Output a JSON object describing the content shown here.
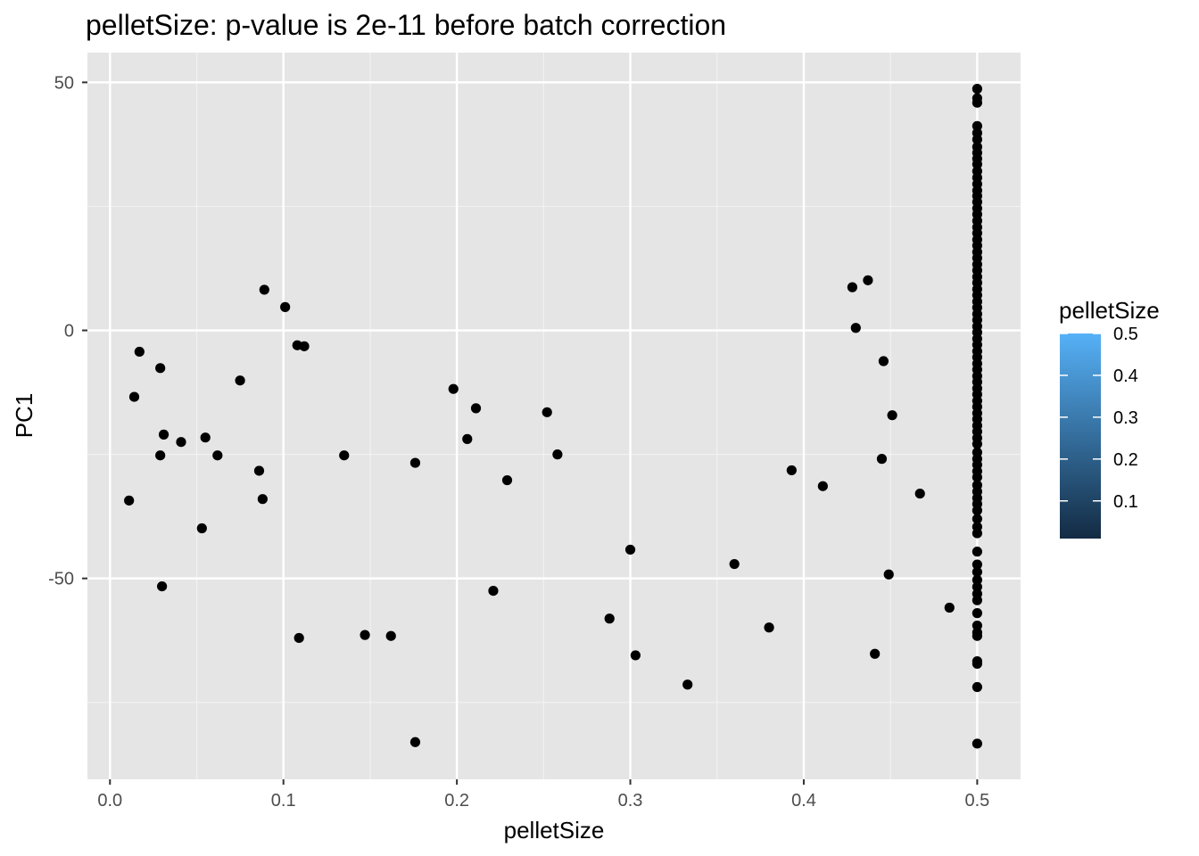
{
  "chart_data": {
    "type": "scatter",
    "title": "pelletSize: p-value is 2e-11 before batch correction",
    "xlabel": "pelletSize",
    "ylabel": "PC1",
    "xlim": [
      -0.013,
      0.525
    ],
    "ylim": [
      -90.5,
      56
    ],
    "x_ticks": [
      0.0,
      0.1,
      0.2,
      0.3,
      0.4,
      0.5
    ],
    "x_tick_labels": [
      "0.0",
      "0.1",
      "0.2",
      "0.3",
      "0.4",
      "0.5"
    ],
    "y_ticks": [
      50,
      0,
      -50
    ],
    "y_tick_labels": [
      "50",
      "0",
      "-50"
    ],
    "grid": true,
    "panel_background": "#e5e5e5",
    "point_color": "#000000",
    "legend": {
      "title": "pelletSize",
      "position": "right",
      "type": "colorbar",
      "low_color": "#132b43",
      "high_color": "#56b1f7",
      "range": [
        0.01,
        0.5
      ],
      "breaks": [
        0.5,
        0.4,
        0.3,
        0.2,
        0.1
      ],
      "break_labels": [
        "0.5",
        "0.4",
        "0.3",
        "0.2",
        "0.1"
      ]
    },
    "points": [
      [
        0.011,
        -34.3
      ],
      [
        0.014,
        -13.4
      ],
      [
        0.017,
        -4.3
      ],
      [
        0.029,
        -7.6
      ],
      [
        0.029,
        -25.2
      ],
      [
        0.03,
        -51.6
      ],
      [
        0.031,
        -21.0
      ],
      [
        0.041,
        -22.5
      ],
      [
        0.053,
        -39.9
      ],
      [
        0.055,
        -21.6
      ],
      [
        0.062,
        -25.2
      ],
      [
        0.075,
        -10.1
      ],
      [
        0.086,
        -28.3
      ],
      [
        0.088,
        -34.0
      ],
      [
        0.089,
        8.2
      ],
      [
        0.101,
        4.7
      ],
      [
        0.108,
        -3.0
      ],
      [
        0.109,
        -62.0
      ],
      [
        0.112,
        -3.2
      ],
      [
        0.135,
        -25.2
      ],
      [
        0.147,
        -61.4
      ],
      [
        0.162,
        -61.6
      ],
      [
        0.176,
        -26.7
      ],
      [
        0.176,
        -83.0
      ],
      [
        0.198,
        -11.8
      ],
      [
        0.206,
        -21.9
      ],
      [
        0.211,
        -15.7
      ],
      [
        0.221,
        -52.5
      ],
      [
        0.229,
        -30.2
      ],
      [
        0.252,
        -16.5
      ],
      [
        0.258,
        -25.0
      ],
      [
        0.288,
        -58.1
      ],
      [
        0.3,
        -44.2
      ],
      [
        0.303,
        -65.5
      ],
      [
        0.333,
        -71.4
      ],
      [
        0.36,
        -47.1
      ],
      [
        0.38,
        -59.9
      ],
      [
        0.393,
        -28.2
      ],
      [
        0.411,
        -31.4
      ],
      [
        0.428,
        8.7
      ],
      [
        0.43,
        0.5
      ],
      [
        0.437,
        10.1
      ],
      [
        0.441,
        -65.2
      ],
      [
        0.445,
        -25.9
      ],
      [
        0.446,
        -6.2
      ],
      [
        0.449,
        -49.2
      ],
      [
        0.451,
        -17.1
      ],
      [
        0.467,
        -32.9
      ],
      [
        0.484,
        -55.9
      ],
      [
        0.5,
        48.7
      ],
      [
        0.5,
        46.8
      ],
      [
        0.5,
        45.9
      ],
      [
        0.5,
        41.2
      ],
      [
        0.5,
        39.8
      ],
      [
        0.5,
        38.5
      ],
      [
        0.5,
        37.0
      ],
      [
        0.5,
        35.8
      ],
      [
        0.5,
        34.6
      ],
      [
        0.5,
        33.5
      ],
      [
        0.5,
        32.1
      ],
      [
        0.5,
        30.8
      ],
      [
        0.5,
        29.5
      ],
      [
        0.5,
        28.2
      ],
      [
        0.5,
        27.1
      ],
      [
        0.5,
        25.9
      ],
      [
        0.5,
        24.6
      ],
      [
        0.5,
        23.4
      ],
      [
        0.5,
        22.1
      ],
      [
        0.5,
        20.8
      ],
      [
        0.5,
        19.6
      ],
      [
        0.5,
        18.3
      ],
      [
        0.5,
        17.1
      ],
      [
        0.5,
        15.8
      ],
      [
        0.5,
        14.6
      ],
      [
        0.5,
        13.3
      ],
      [
        0.5,
        12.1
      ],
      [
        0.5,
        10.8
      ],
      [
        0.5,
        9.6
      ],
      [
        0.5,
        8.3
      ],
      [
        0.5,
        7.1
      ],
      [
        0.5,
        5.8
      ],
      [
        0.5,
        4.6
      ],
      [
        0.5,
        3.3
      ],
      [
        0.5,
        2.1
      ],
      [
        0.5,
        0.8
      ],
      [
        0.5,
        -0.4
      ],
      [
        0.5,
        -1.7
      ],
      [
        0.5,
        -2.9
      ],
      [
        0.5,
        -4.2
      ],
      [
        0.5,
        -5.4
      ],
      [
        0.5,
        -6.7
      ],
      [
        0.5,
        -7.9
      ],
      [
        0.5,
        -9.2
      ],
      [
        0.5,
        -10.4
      ],
      [
        0.5,
        -11.7
      ],
      [
        0.5,
        -12.9
      ],
      [
        0.5,
        -14.2
      ],
      [
        0.5,
        -15.4
      ],
      [
        0.5,
        -16.7
      ],
      [
        0.5,
        -17.9
      ],
      [
        0.5,
        -19.2
      ],
      [
        0.5,
        -20.4
      ],
      [
        0.5,
        -21.7
      ],
      [
        0.5,
        -22.9
      ],
      [
        0.5,
        -24.6
      ],
      [
        0.5,
        -25.9
      ],
      [
        0.5,
        -27.1
      ],
      [
        0.5,
        -28.4
      ],
      [
        0.5,
        -29.6
      ],
      [
        0.5,
        -31.2
      ],
      [
        0.5,
        -32.5
      ],
      [
        0.5,
        -33.8
      ],
      [
        0.5,
        -35.0
      ],
      [
        0.5,
        -36.3
      ],
      [
        0.5,
        -38.0
      ],
      [
        0.5,
        -39.6
      ],
      [
        0.5,
        -40.9
      ],
      [
        0.5,
        -44.6
      ],
      [
        0.5,
        -47.2
      ],
      [
        0.5,
        -48.7
      ],
      [
        0.5,
        -50.3
      ],
      [
        0.5,
        -51.7
      ],
      [
        0.5,
        -53.1
      ],
      [
        0.5,
        -54.4
      ],
      [
        0.5,
        -57.0
      ],
      [
        0.5,
        -59.5
      ],
      [
        0.5,
        -60.9
      ],
      [
        0.5,
        -61.6
      ],
      [
        0.5,
        -66.7
      ],
      [
        0.5,
        -67.2
      ],
      [
        0.5,
        -71.9
      ],
      [
        0.5,
        -83.3
      ]
    ]
  }
}
